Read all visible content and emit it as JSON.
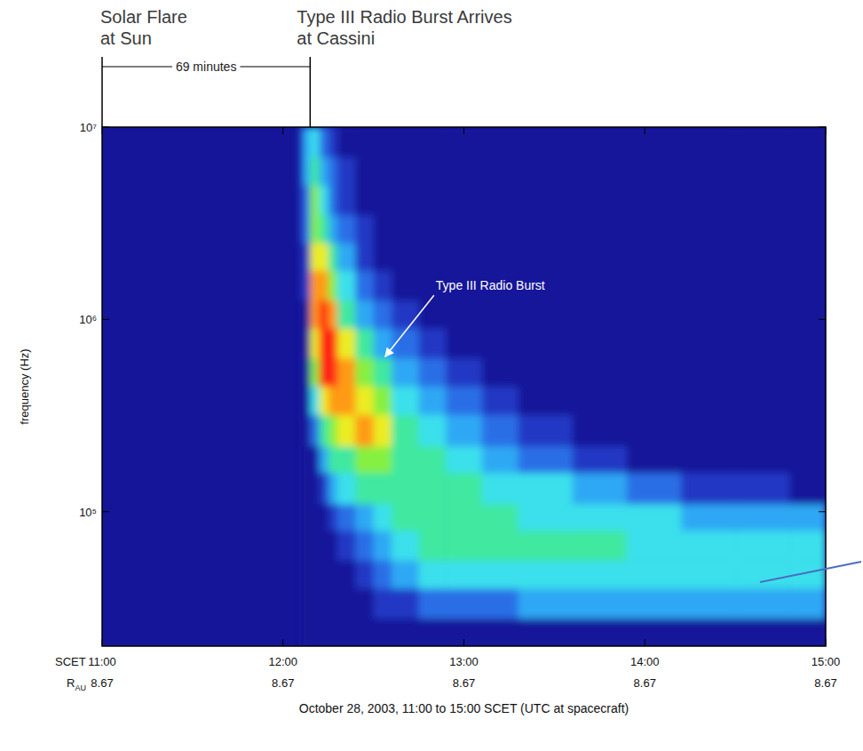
{
  "chart_data": {
    "type": "heatmap",
    "log": "y",
    "x_label": "October 28, 2003, 11:00 to 15:00 SCET (UTC at spacecraft)",
    "y_label": "frequency (Hz)",
    "xlim": [
      11,
      15
    ],
    "xticks": [
      {
        "value": 11,
        "label": "11:00"
      },
      {
        "value": 12,
        "label": "12:00"
      },
      {
        "value": 13,
        "label": "13:00"
      },
      {
        "value": 14,
        "label": "14:00"
      },
      {
        "value": 15,
        "label": "15:00"
      }
    ],
    "x_row_label": "SCET",
    "distance_row": {
      "label": {
        "text": "R",
        "subscript": "AU"
      },
      "values": [
        8.67,
        8.67,
        8.67,
        8.67,
        8.67
      ]
    },
    "ylim": [
      20000,
      10000000
    ],
    "yticks": [
      {
        "value": 100000,
        "label": "10⁵"
      },
      {
        "value": 1000000,
        "label": "10⁶"
      },
      {
        "value": 10000000,
        "label": "10⁷"
      }
    ],
    "flare": {
      "lines": [
        "Solar Flare",
        "at Sun"
      ],
      "time": 11.0
    },
    "arrival": {
      "lines": [
        "Type III Radio Burst Arrives",
        "at Cassini"
      ],
      "time": 12.15
    },
    "interval_label": "69 minutes",
    "burst_label": {
      "text": "Type III Radio Burst",
      "x": 12.55,
      "y": 620000
    },
    "heatmap": {
      "zlim": [
        0,
        9
      ],
      "x_edges": [
        12.1,
        12.15,
        12.2,
        12.25,
        12.3,
        12.4,
        12.5,
        12.6,
        12.75,
        12.9,
        13.1,
        13.3,
        13.6,
        13.9,
        14.2,
        14.5,
        14.8,
        15.0
      ],
      "y_edges": [
        20000,
        28000,
        40000,
        56000,
        80000,
        110000,
        160000,
        220000,
        320000,
        450000,
        630000,
        900000,
        1260000,
        1800000,
        2500000,
        3500000,
        5000000,
        7000000,
        10000000
      ],
      "cells": [
        [
          0,
          0,
          0,
          0,
          0,
          0,
          0,
          0,
          0,
          0,
          0,
          0,
          0,
          0,
          0,
          0,
          0
        ],
        [
          0,
          0,
          0,
          0,
          0,
          0,
          1,
          1,
          2,
          2,
          2,
          3,
          3,
          3,
          3,
          3,
          3
        ],
        [
          0,
          0,
          0,
          0,
          0,
          1,
          2,
          3,
          4,
          4,
          4,
          4,
          4,
          4,
          4,
          4,
          4
        ],
        [
          0,
          0,
          0,
          0,
          1,
          2,
          3,
          4,
          5,
          5,
          5,
          5,
          5,
          4,
          4,
          4,
          4
        ],
        [
          0,
          0,
          0,
          1,
          2,
          3,
          4,
          5,
          5,
          5,
          5,
          4,
          4,
          4,
          3,
          3,
          3
        ],
        [
          0,
          0,
          1,
          3,
          4,
          5,
          5,
          5,
          5,
          5,
          4,
          4,
          3,
          2,
          1,
          1,
          0
        ],
        [
          0,
          0,
          3,
          5,
          5,
          6,
          6,
          5,
          5,
          4,
          3,
          2,
          1,
          0,
          0,
          0,
          0
        ],
        [
          0,
          2,
          5,
          6,
          7,
          8,
          7,
          5,
          4,
          3,
          2,
          1,
          0,
          0,
          0,
          0,
          0
        ],
        [
          0,
          4,
          7,
          8,
          8,
          7,
          6,
          4,
          3,
          2,
          1,
          0,
          0,
          0,
          0,
          0,
          0
        ],
        [
          0,
          6,
          9,
          9,
          8,
          6,
          5,
          3,
          2,
          1,
          0,
          0,
          0,
          0,
          0,
          0,
          0
        ],
        [
          0,
          7,
          9,
          9,
          7,
          5,
          3,
          2,
          1,
          0,
          0,
          0,
          0,
          0,
          0,
          0,
          0
        ],
        [
          0,
          8,
          9,
          8,
          5,
          3,
          2,
          1,
          0,
          0,
          0,
          0,
          0,
          0,
          0,
          0,
          0
        ],
        [
          1,
          8,
          8,
          6,
          4,
          2,
          1,
          0,
          0,
          0,
          0,
          0,
          0,
          0,
          0,
          0,
          0
        ],
        [
          1,
          7,
          7,
          5,
          3,
          1,
          0,
          0,
          0,
          0,
          0,
          0,
          0,
          0,
          0,
          0,
          0
        ],
        [
          2,
          6,
          5,
          3,
          2,
          1,
          0,
          0,
          0,
          0,
          0,
          0,
          0,
          0,
          0,
          0,
          0
        ],
        [
          2,
          6,
          4,
          2,
          1,
          0,
          0,
          0,
          0,
          0,
          0,
          0,
          0,
          0,
          0,
          0,
          0
        ],
        [
          3,
          5,
          3,
          2,
          1,
          0,
          0,
          0,
          0,
          0,
          0,
          0,
          0,
          0,
          0,
          0,
          0
        ],
        [
          3,
          4,
          2,
          1,
          0,
          0,
          0,
          0,
          0,
          0,
          0,
          0,
          0,
          0,
          0,
          0,
          0
        ]
      ]
    }
  }
}
